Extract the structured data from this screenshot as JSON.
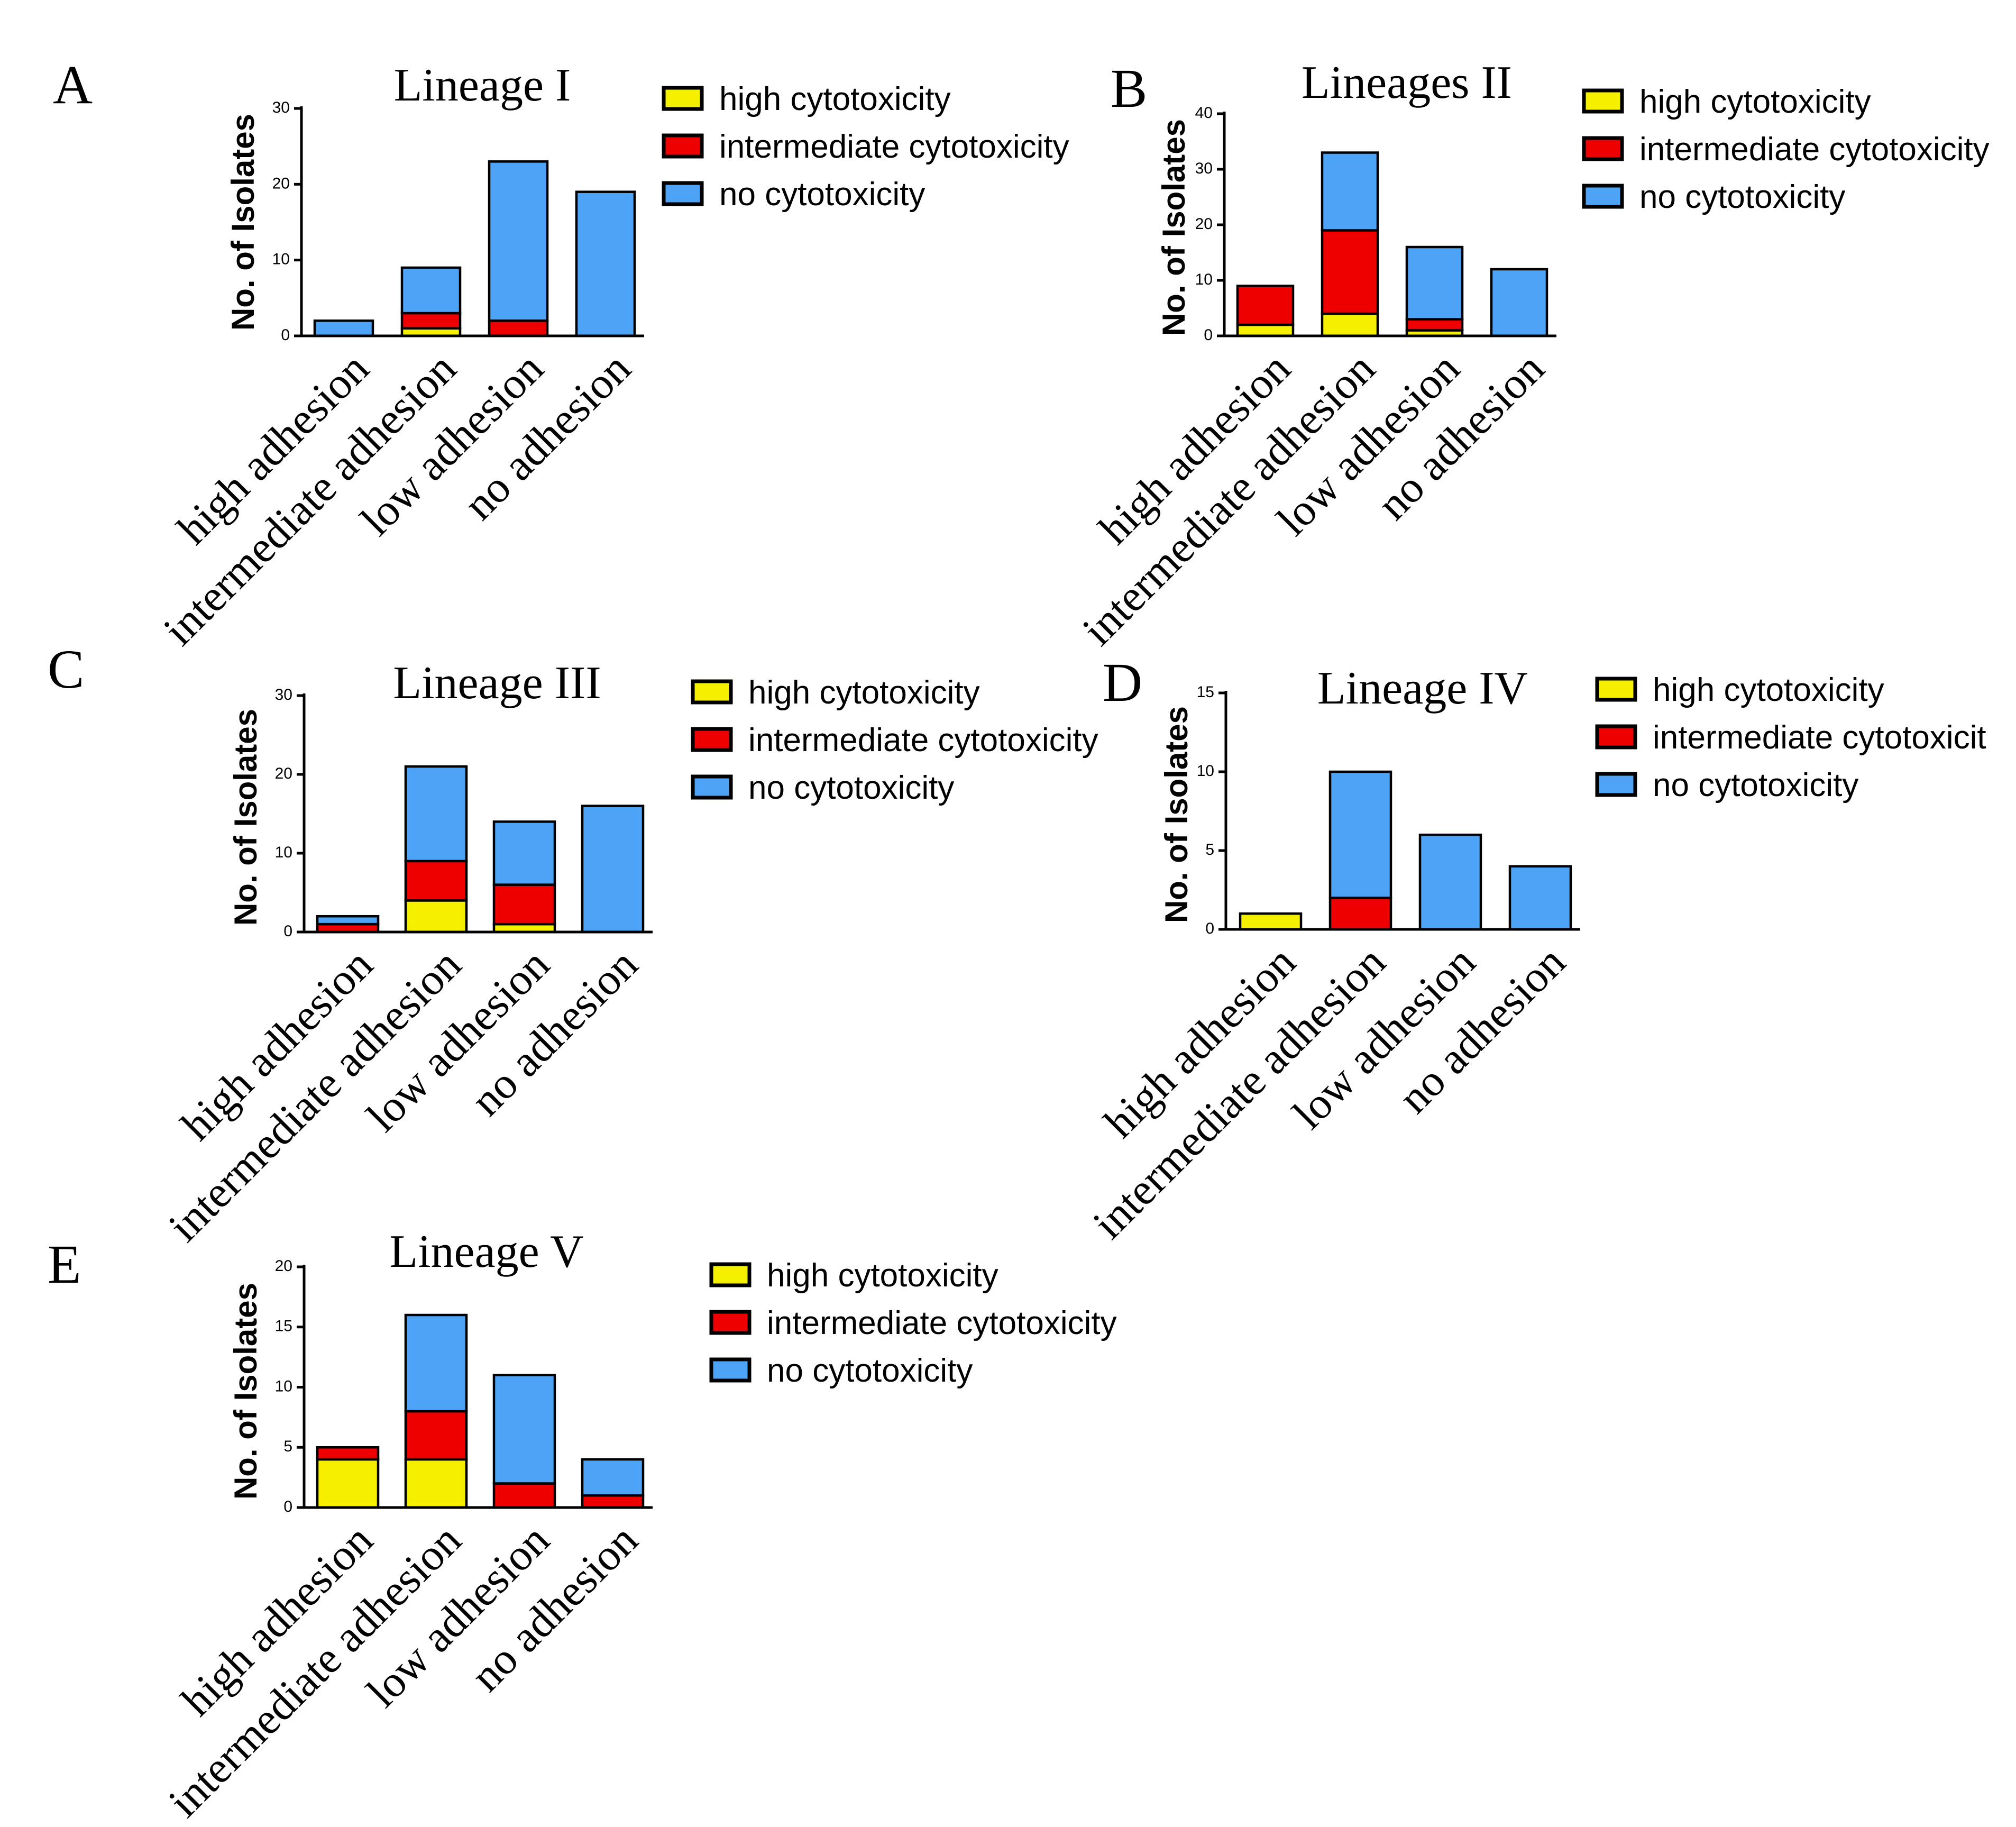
{
  "figure": {
    "colors": {
      "high_cytotoxicity": "#f5f000",
      "intermediate_cytotoxicity": "#ee0000",
      "no_cytotoxicity": "#4da3f5"
    }
  },
  "chart_data": [
    {
      "panel": "A",
      "type": "bar",
      "stacked": true,
      "title": "Lineage I",
      "ylabel": "No. of Isolates",
      "xlabel": "",
      "ylim": [
        0,
        30
      ],
      "yticks": [
        0,
        10,
        20,
        30
      ],
      "categories": [
        "high adhesion",
        "intermediate adhesion",
        "low adhesion",
        "no adhesion"
      ],
      "legend": [
        "high cytotoxicity",
        "intermediate cytotoxicity",
        "no cytotoxicity"
      ],
      "legend_position": "right",
      "series": [
        {
          "name": "high cytotoxicity",
          "color_key": "high_cytotoxicity",
          "values": [
            0,
            1,
            0,
            0
          ]
        },
        {
          "name": "intermediate cytotoxicity",
          "color_key": "intermediate_cytotoxicity",
          "values": [
            0,
            2,
            2,
            0
          ]
        },
        {
          "name": "no cytotoxicity",
          "color_key": "no_cytotoxicity",
          "values": [
            2,
            6,
            21,
            19
          ]
        }
      ]
    },
    {
      "panel": "B",
      "type": "bar",
      "stacked": true,
      "title": "Lineages II",
      "ylabel": "No. of Isolates",
      "xlabel": "",
      "ylim": [
        0,
        40
      ],
      "yticks": [
        0,
        10,
        20,
        30,
        40
      ],
      "categories": [
        "high adhesion",
        "intermediate adhesion",
        "low adhesion",
        "no adhesion"
      ],
      "legend": [
        "high cytotoxicity",
        "intermediate cytotoxicity",
        "no cytotoxicity"
      ],
      "legend_position": "right",
      "series": [
        {
          "name": "high cytotoxicity",
          "color_key": "high_cytotoxicity",
          "values": [
            2,
            4,
            1,
            0
          ]
        },
        {
          "name": "intermediate cytotoxicity",
          "color_key": "intermediate_cytotoxicity",
          "values": [
            7,
            15,
            2,
            0
          ]
        },
        {
          "name": "no cytotoxicity",
          "color_key": "no_cytotoxicity",
          "values": [
            0,
            14,
            13,
            12
          ]
        }
      ]
    },
    {
      "panel": "C",
      "type": "bar",
      "stacked": true,
      "title": "Lineage III",
      "ylabel": "No. of Isolates",
      "xlabel": "",
      "ylim": [
        0,
        30
      ],
      "yticks": [
        0,
        10,
        20,
        30
      ],
      "categories": [
        "high adhesion",
        "intermediate adhesion",
        "low adhesion",
        "no adhesion"
      ],
      "legend": [
        "high cytotoxicity",
        "intermediate cytotoxicity",
        "no cytotoxicity"
      ],
      "legend_position": "right",
      "series": [
        {
          "name": "high cytotoxicity",
          "color_key": "high_cytotoxicity",
          "values": [
            0,
            4,
            1,
            0
          ]
        },
        {
          "name": "intermediate cytotoxicity",
          "color_key": "intermediate_cytotoxicity",
          "values": [
            1,
            5,
            5,
            0
          ]
        },
        {
          "name": "no cytotoxicity",
          "color_key": "no_cytotoxicity",
          "values": [
            1,
            12,
            8,
            16
          ]
        }
      ]
    },
    {
      "panel": "D",
      "type": "bar",
      "stacked": true,
      "title": "Lineage IV",
      "ylabel": "No. of Isolates",
      "xlabel": "",
      "ylim": [
        0,
        15
      ],
      "yticks": [
        0,
        5,
        10,
        15
      ],
      "categories": [
        "high adhesion",
        "intermediate adhesion",
        "low adhesion",
        "no adhesion"
      ],
      "legend": [
        "high cytotoxicity",
        "intermediate cytotoxicit",
        "no cytotoxicity"
      ],
      "legend_position": "right",
      "series": [
        {
          "name": "high cytotoxicity",
          "color_key": "high_cytotoxicity",
          "values": [
            1,
            0,
            0,
            0
          ]
        },
        {
          "name": "intermediate cytotoxicity",
          "color_key": "intermediate_cytotoxicity",
          "values": [
            0,
            2,
            0,
            0
          ]
        },
        {
          "name": "no cytotoxicity",
          "color_key": "no_cytotoxicity",
          "values": [
            0,
            8,
            6,
            4
          ]
        }
      ]
    },
    {
      "panel": "E",
      "type": "bar",
      "stacked": true,
      "title": "Lineage V",
      "ylabel": "No. of Isolates",
      "xlabel": "",
      "ylim": [
        0,
        20
      ],
      "yticks": [
        0,
        5,
        10,
        15,
        20
      ],
      "categories": [
        "high adhesion",
        "intermediate adhesion",
        "low adhesion",
        "no adhesion"
      ],
      "legend": [
        "high cytotoxicity",
        "intermediate cytotoxicity",
        "no cytotoxicity"
      ],
      "legend_position": "right",
      "series": [
        {
          "name": "high cytotoxicity",
          "color_key": "high_cytotoxicity",
          "values": [
            4,
            4,
            0,
            0
          ]
        },
        {
          "name": "intermediate cytotoxicity",
          "color_key": "intermediate_cytotoxicity",
          "values": [
            1,
            4,
            2,
            1
          ]
        },
        {
          "name": "no cytotoxicity",
          "color_key": "no_cytotoxicity",
          "values": [
            0,
            8,
            9,
            3
          ]
        }
      ]
    }
  ]
}
